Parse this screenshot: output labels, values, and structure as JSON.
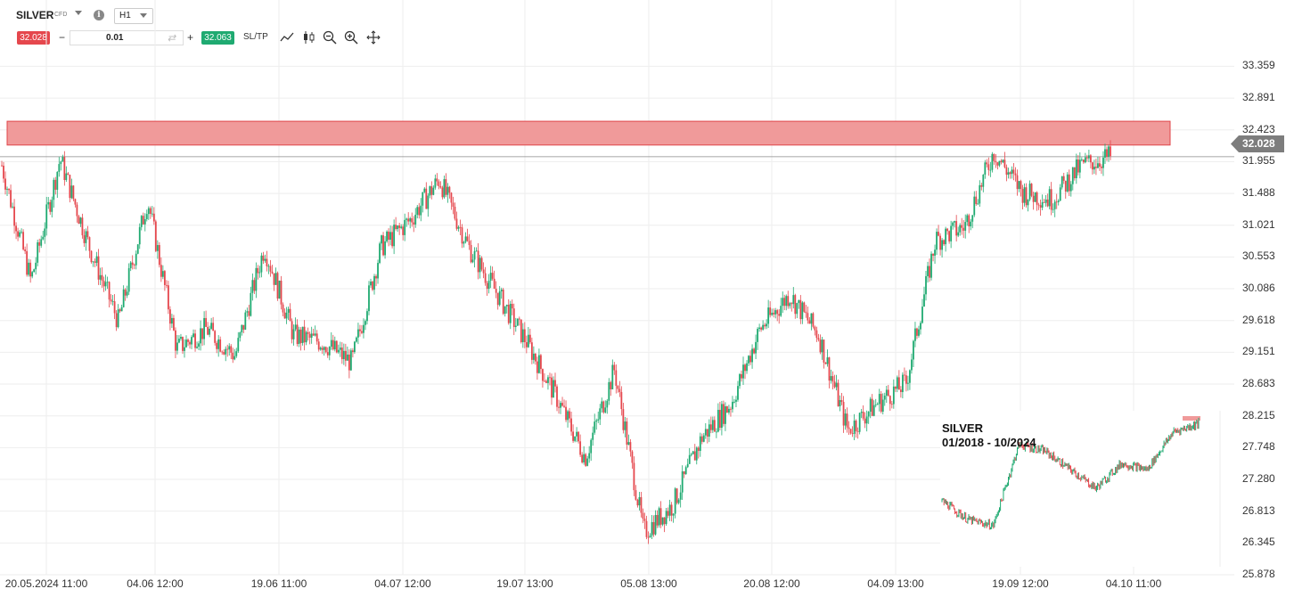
{
  "toolbar": {
    "symbol": "SILVER",
    "instrument_type": "CFD",
    "timeframe": "H1",
    "sell_price": "32.028",
    "volume": "0.01",
    "buy_price": "32.063",
    "sltp_label": "SL/TP",
    "icons": [
      "info-icon",
      "line-chart-icon",
      "candlestick-icon",
      "zoom-out-icon",
      "zoom-in-icon",
      "move-icon"
    ]
  },
  "colors": {
    "bull": "#1faa71",
    "bear": "#e5474d",
    "resistance_fill": "#f09a9a",
    "resistance_border": "#e0454a",
    "price_tag": "#7d7d7d",
    "grid": "#eeeeee"
  },
  "chart_data": {
    "type": "candlestick",
    "symbol": "SILVER",
    "timeframe": "H1",
    "ylim": [
      25.878,
      33.6
    ],
    "y_ticks": [
      "33.359",
      "32.891",
      "32.423",
      "31.955",
      "31.488",
      "31.021",
      "30.553",
      "30.086",
      "29.618",
      "29.151",
      "28.683",
      "28.215",
      "27.748",
      "27.280",
      "26.813",
      "26.345",
      "25.878"
    ],
    "x_ticks": [
      "20.05.2024 11:00",
      "04.06 12:00",
      "19.06 11:00",
      "04.07 12:00",
      "19.07 13:00",
      "05.08 13:00",
      "20.08 12:00",
      "04.09 13:00",
      "19.09 12:00",
      "04.10 11:00"
    ],
    "current_price": "32.028",
    "resistance_zone": {
      "low": 32.2,
      "high": 32.55
    },
    "approx_close_path": [
      {
        "x": "20.05.2024 11:00",
        "y": 31.9
      },
      {
        "x": "23.05",
        "y": 30.2
      },
      {
        "x": "28.05",
        "y": 32.0
      },
      {
        "x": "31.05",
        "y": 30.7
      },
      {
        "x": "04.06 12:00",
        "y": 29.6
      },
      {
        "x": "06.06",
        "y": 31.4
      },
      {
        "x": "08.06",
        "y": 29.2
      },
      {
        "x": "12.06",
        "y": 29.5
      },
      {
        "x": "16.06",
        "y": 29.1
      },
      {
        "x": "19.06 11:00",
        "y": 30.7
      },
      {
        "x": "21.06",
        "y": 29.4
      },
      {
        "x": "25.06",
        "y": 29.3
      },
      {
        "x": "29.06",
        "y": 29.0
      },
      {
        "x": "04.07 12:00",
        "y": 30.7
      },
      {
        "x": "07.07",
        "y": 31.1
      },
      {
        "x": "11.07",
        "y": 31.7
      },
      {
        "x": "14.07",
        "y": 30.7
      },
      {
        "x": "17.07",
        "y": 30.0
      },
      {
        "x": "19.07 13:00",
        "y": 29.3
      },
      {
        "x": "23.07",
        "y": 28.5
      },
      {
        "x": "27.07",
        "y": 27.6
      },
      {
        "x": "01.08",
        "y": 28.9
      },
      {
        "x": "05.08 13:00",
        "y": 26.5
      },
      {
        "x": "08.08",
        "y": 26.9
      },
      {
        "x": "12.08",
        "y": 27.9
      },
      {
        "x": "16.08",
        "y": 28.4
      },
      {
        "x": "20.08 12:00",
        "y": 29.5
      },
      {
        "x": "23.08",
        "y": 30.0
      },
      {
        "x": "27.08",
        "y": 29.4
      },
      {
        "x": "31.08",
        "y": 28.0
      },
      {
        "x": "04.09 13:00",
        "y": 28.4
      },
      {
        "x": "07.09",
        "y": 28.7
      },
      {
        "x": "11.09",
        "y": 30.8
      },
      {
        "x": "15.09",
        "y": 31.0
      },
      {
        "x": "19.09 12:00",
        "y": 32.1
      },
      {
        "x": "23.09",
        "y": 31.5
      },
      {
        "x": "27.09",
        "y": 31.4
      },
      {
        "x": "01.10",
        "y": 31.9
      },
      {
        "x": "04.10 11:00",
        "y": 32.03
      }
    ],
    "inset": {
      "title_line1": "SILVER",
      "title_line2": "01/2018 - 10/2024",
      "approx_close_path": [
        {
          "x": "01/2018",
          "y": 0.35
        },
        {
          "x": "2019",
          "y": 0.2
        },
        {
          "x": "2020-03",
          "y": 0.15
        },
        {
          "x": "2020-08",
          "y": 0.8
        },
        {
          "x": "2021",
          "y": 0.75
        },
        {
          "x": "2022",
          "y": 0.6
        },
        {
          "x": "2022-09",
          "y": 0.45
        },
        {
          "x": "2023",
          "y": 0.65
        },
        {
          "x": "2024-02",
          "y": 0.6
        },
        {
          "x": "2024-05",
          "y": 0.9
        },
        {
          "x": "10/2024",
          "y": 0.97
        }
      ]
    }
  }
}
